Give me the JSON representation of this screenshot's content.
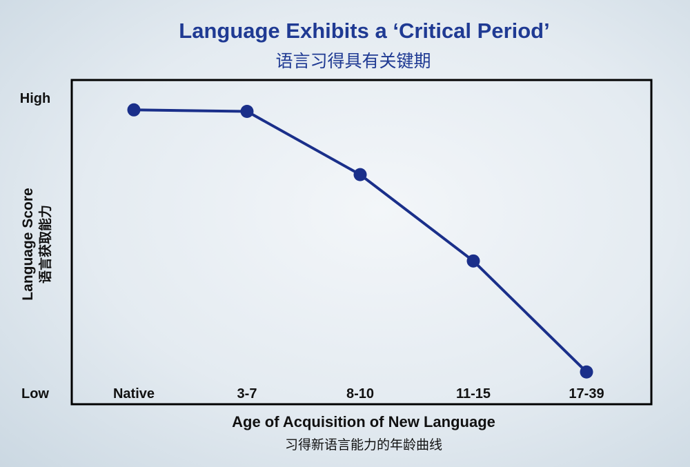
{
  "chart_data": {
    "type": "line",
    "title": "Language Exhibits a ‘Critical Period’",
    "subtitle": "语言习得具有关键期",
    "xlabel": "Age of Acquisition of New Language",
    "xlabel_cn": "习得新语言能力的年龄曲线",
    "ylabel": "Language Score",
    "ylabel_cn": "语言获取能力",
    "categories": [
      "Native",
      "3-7",
      "8-10",
      "11-15",
      "17-39"
    ],
    "y_tick_labels": [
      "High",
      "Low"
    ],
    "ylim": [
      0,
      100
    ],
    "grid": false,
    "legend": "none",
    "series": [
      {
        "values": [
          93,
          92.5,
          72,
          44,
          8
        ],
        "color": "#1a2f8a"
      }
    ]
  }
}
